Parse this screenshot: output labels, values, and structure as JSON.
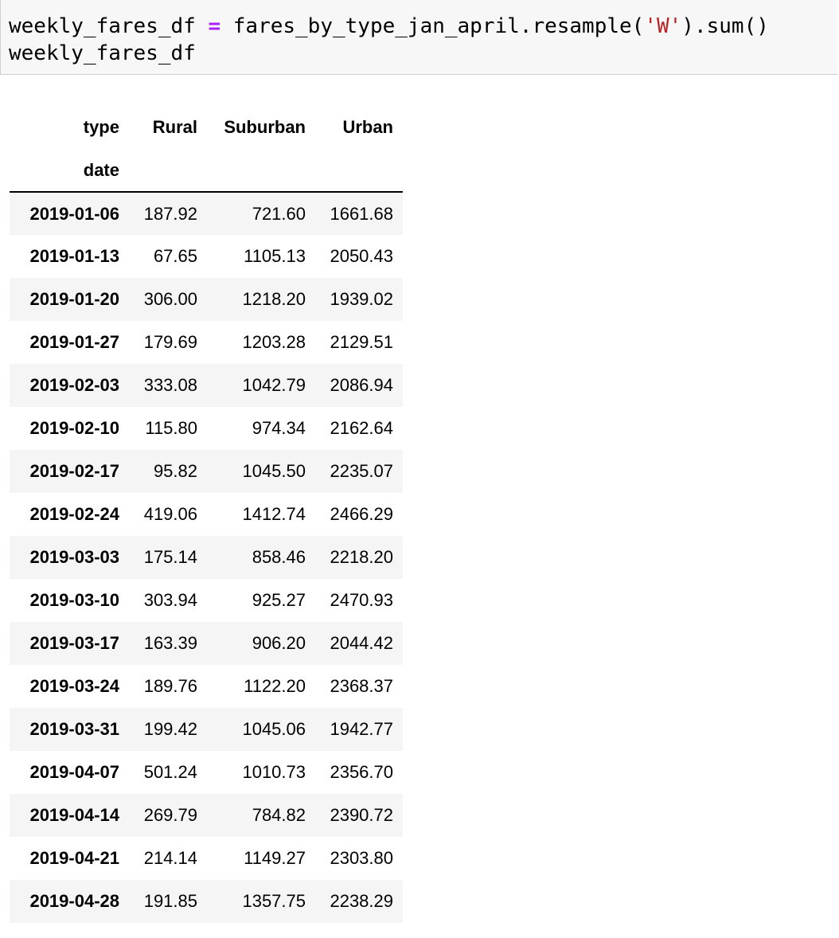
{
  "code_cell": {
    "line1": {
      "var": "weekly_fares_df ",
      "op": "=",
      "expr_start": " fares_by_type_jan_april.resample(",
      "str": "'W'",
      "expr_end": ").sum()"
    },
    "line2": "weekly_fares_df"
  },
  "dataframe": {
    "columns_label": "type",
    "index_label": "date",
    "columns": [
      "Rural",
      "Suburban",
      "Urban"
    ],
    "rows": [
      {
        "date": "2019-01-06",
        "values": [
          "187.92",
          "721.60",
          "1661.68"
        ]
      },
      {
        "date": "2019-01-13",
        "values": [
          "67.65",
          "1105.13",
          "2050.43"
        ]
      },
      {
        "date": "2019-01-20",
        "values": [
          "306.00",
          "1218.20",
          "1939.02"
        ]
      },
      {
        "date": "2019-01-27",
        "values": [
          "179.69",
          "1203.28",
          "2129.51"
        ]
      },
      {
        "date": "2019-02-03",
        "values": [
          "333.08",
          "1042.79",
          "2086.94"
        ]
      },
      {
        "date": "2019-02-10",
        "values": [
          "115.80",
          "974.34",
          "2162.64"
        ]
      },
      {
        "date": "2019-02-17",
        "values": [
          "95.82",
          "1045.50",
          "2235.07"
        ]
      },
      {
        "date": "2019-02-24",
        "values": [
          "419.06",
          "1412.74",
          "2466.29"
        ]
      },
      {
        "date": "2019-03-03",
        "values": [
          "175.14",
          "858.46",
          "2218.20"
        ]
      },
      {
        "date": "2019-03-10",
        "values": [
          "303.94",
          "925.27",
          "2470.93"
        ]
      },
      {
        "date": "2019-03-17",
        "values": [
          "163.39",
          "906.20",
          "2044.42"
        ]
      },
      {
        "date": "2019-03-24",
        "values": [
          "189.76",
          "1122.20",
          "2368.37"
        ]
      },
      {
        "date": "2019-03-31",
        "values": [
          "199.42",
          "1045.06",
          "1942.77"
        ]
      },
      {
        "date": "2019-04-07",
        "values": [
          "501.24",
          "1010.73",
          "2356.70"
        ]
      },
      {
        "date": "2019-04-14",
        "values": [
          "269.79",
          "784.82",
          "2390.72"
        ]
      },
      {
        "date": "2019-04-21",
        "values": [
          "214.14",
          "1149.27",
          "2303.80"
        ]
      },
      {
        "date": "2019-04-28",
        "values": [
          "191.85",
          "1357.75",
          "2238.29"
        ]
      }
    ]
  }
}
